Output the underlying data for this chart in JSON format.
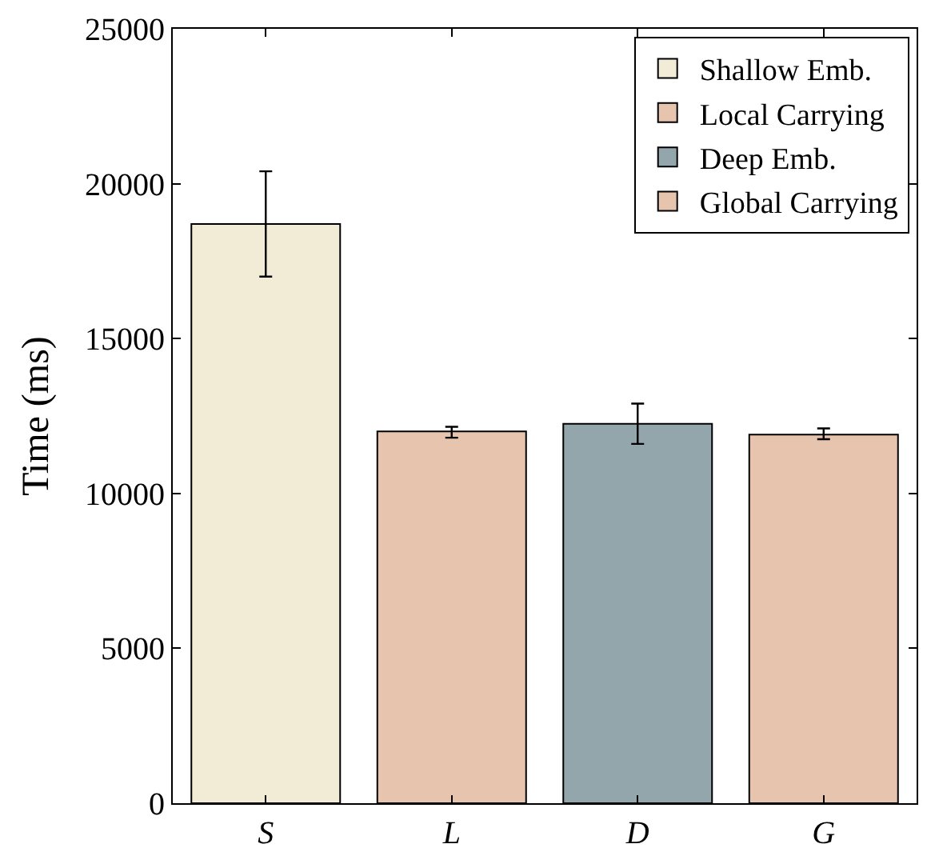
{
  "chart_data": {
    "type": "bar",
    "ylabel": "Time (ms)",
    "categories": [
      "S",
      "L",
      "D",
      "G"
    ],
    "series": [
      {
        "name": "Shallow Emb.",
        "color": "#f2ecd6",
        "values": [
          18700,
          null,
          null,
          null
        ],
        "errors": [
          [
            17000,
            20400
          ],
          null,
          null,
          null
        ]
      },
      {
        "name": "Local Carrying",
        "color": "#e6c4ad",
        "values": [
          null,
          12000,
          null,
          null
        ],
        "errors": [
          null,
          [
            11800,
            12150
          ],
          null,
          null
        ]
      },
      {
        "name": "Deep Emb.",
        "color": "#93a6ac",
        "values": [
          null,
          null,
          12250,
          null
        ],
        "errors": [
          null,
          null,
          [
            11600,
            12900
          ],
          null
        ]
      },
      {
        "name": "Global Carrying",
        "color": "#e6c4ad",
        "values": [
          null,
          null,
          null,
          11900
        ],
        "errors": [
          null,
          null,
          null,
          [
            11750,
            12100
          ]
        ]
      }
    ],
    "ylim": [
      0,
      25000
    ],
    "yticks": [
      0,
      5000,
      10000,
      15000,
      20000,
      25000
    ],
    "legend": "top right"
  }
}
